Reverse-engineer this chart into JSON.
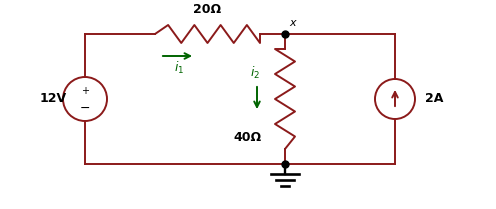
{
  "bg_color": "#ffffff",
  "wire_color": "#8B1A1A",
  "resistor_color": "#8B1A1A",
  "node_color": "#000000",
  "arrow_color": "#006400",
  "label_color": "#000000",
  "vs_label": "12V",
  "r1_label": "20Ω",
  "r2_label": "40Ω",
  "cs_label": "2A",
  "i1_label": "i_1",
  "i2_label": "i_2",
  "node_label": "x",
  "figsize": [
    4.96,
    2.09
  ],
  "dpi": 100
}
